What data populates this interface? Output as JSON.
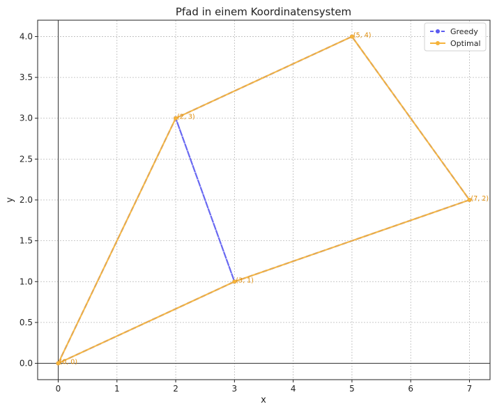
{
  "chart_data": {
    "type": "line",
    "title": "Pfad in einem Koordinatensystem",
    "xlabel": "x",
    "ylabel": "y",
    "xlim": [
      -0.35,
      7.35
    ],
    "ylim": [
      -0.2,
      4.2
    ],
    "xticks": [
      "0",
      "1",
      "2",
      "3",
      "4",
      "5",
      "6",
      "7"
    ],
    "yticks": [
      "0.0",
      "0.5",
      "1.0",
      "1.5",
      "2.0",
      "2.5",
      "3.0",
      "3.5",
      "4.0"
    ],
    "grid": true,
    "legend_position": "top-right",
    "series": [
      {
        "name": "Greedy",
        "color": "#5b5bf0",
        "style": "dashed",
        "points": [
          [
            0,
            0
          ],
          [
            2,
            3
          ],
          [
            5,
            4
          ],
          [
            7,
            2
          ],
          [
            3,
            1
          ],
          [
            2,
            3
          ],
          [
            3,
            1
          ],
          [
            0,
            0
          ]
        ]
      },
      {
        "name": "Optimal",
        "color": "#f5b33a",
        "style": "solid",
        "points": [
          [
            0,
            0
          ],
          [
            2,
            3
          ],
          [
            5,
            4
          ],
          [
            7,
            2
          ],
          [
            3,
            1
          ],
          [
            0,
            0
          ]
        ]
      }
    ],
    "point_labels": [
      {
        "x": 0,
        "y": 0,
        "text": "(0, 0)"
      },
      {
        "x": 2,
        "y": 3,
        "text": "(2, 3)"
      },
      {
        "x": 5,
        "y": 4,
        "text": "(5, 4)"
      },
      {
        "x": 7,
        "y": 2,
        "text": "(7, 2)"
      },
      {
        "x": 3,
        "y": 1,
        "text": "(3, 1)"
      }
    ],
    "point_label_color": "#e08e0b"
  }
}
